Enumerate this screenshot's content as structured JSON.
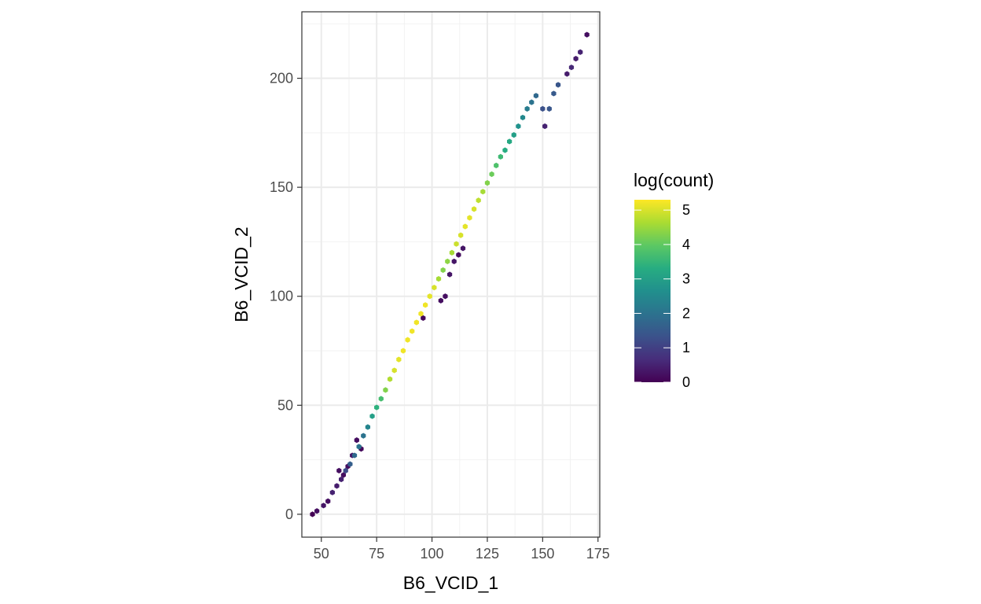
{
  "chart_data": {
    "type": "hexbin",
    "xlabel": "B6_VCID_1",
    "ylabel": "B6_VCID_2",
    "xlim": [
      41.2,
      175.8
    ],
    "ylim": [
      -10.5,
      230.5
    ],
    "x_ticks": [
      50,
      75,
      100,
      125,
      150,
      175
    ],
    "y_ticks": [
      0,
      50,
      100,
      150,
      200
    ],
    "x_tick_labels": [
      "50",
      "75",
      "100",
      "125",
      "150",
      "175"
    ],
    "y_tick_labels": [
      "0",
      "50",
      "100",
      "150",
      "200"
    ],
    "grid": true,
    "legend": {
      "title": "log(count)",
      "position": "right",
      "ticks": [
        0,
        1,
        2,
        3,
        4,
        5
      ],
      "tick_labels": [
        "0",
        "1",
        "2",
        "3",
        "4",
        "5"
      ],
      "range": [
        0,
        5.3
      ],
      "colormap": "viridis"
    },
    "colors": [
      "#440154",
      "#472d7b",
      "#3b528b",
      "#2c728e",
      "#21908d",
      "#27ad81",
      "#5cc863",
      "#aadc32",
      "#fde725"
    ],
    "points": [
      [
        46,
        0,
        0
      ],
      [
        48,
        1.5,
        0.2
      ],
      [
        51,
        4,
        0.3
      ],
      [
        53,
        6,
        0.2
      ],
      [
        55,
        10,
        0.5
      ],
      [
        57,
        13,
        0.4
      ],
      [
        59,
        16,
        0.5
      ],
      [
        61,
        20,
        1.2
      ],
      [
        63,
        23,
        1.6
      ],
      [
        65,
        27,
        1.8
      ],
      [
        67,
        31,
        2.0
      ],
      [
        69,
        36,
        2.0
      ],
      [
        71,
        40,
        2.4
      ],
      [
        73,
        45,
        3.0
      ],
      [
        75,
        49,
        3.4
      ],
      [
        77,
        53,
        3.7
      ],
      [
        79,
        57,
        4.3
      ],
      [
        81,
        62,
        4.7
      ],
      [
        83,
        66,
        5.0
      ],
      [
        85,
        71,
        5.1
      ],
      [
        87,
        75,
        5.2
      ],
      [
        89,
        80,
        5.2
      ],
      [
        91,
        84,
        5.2
      ],
      [
        93,
        88,
        5.2
      ],
      [
        95,
        92,
        5.2
      ],
      [
        97,
        96,
        5.2
      ],
      [
        99,
        100,
        5.1
      ],
      [
        101,
        104,
        5.0
      ],
      [
        103,
        108,
        4.6
      ],
      [
        105,
        112,
        4.3
      ],
      [
        107,
        116,
        4.4
      ],
      [
        109,
        120,
        4.6
      ],
      [
        111,
        124,
        4.9
      ],
      [
        113,
        128,
        5.0
      ],
      [
        115,
        132,
        5.1
      ],
      [
        117,
        136,
        5.1
      ],
      [
        119,
        140,
        5.0
      ],
      [
        121,
        144,
        4.8
      ],
      [
        123,
        148,
        4.6
      ],
      [
        125,
        152,
        4.3
      ],
      [
        127,
        156,
        4.1
      ],
      [
        129,
        160,
        3.8
      ],
      [
        131,
        164,
        3.6
      ],
      [
        133,
        167,
        3.3
      ],
      [
        135,
        171,
        3.2
      ],
      [
        137,
        174,
        3.0
      ],
      [
        139,
        178,
        2.7
      ],
      [
        141,
        182,
        2.5
      ],
      [
        143,
        186,
        2.2
      ],
      [
        145,
        189,
        2.0
      ],
      [
        147,
        192,
        1.8
      ],
      [
        150,
        186,
        1.3
      ],
      [
        151,
        178,
        0.5
      ],
      [
        153,
        186,
        1.4
      ],
      [
        155,
        193,
        1.5
      ],
      [
        157,
        197,
        1.4
      ],
      [
        161,
        202,
        0.4
      ],
      [
        163,
        205,
        0.6
      ],
      [
        165,
        209,
        0.4
      ],
      [
        167,
        212,
        0.5
      ],
      [
        170,
        220,
        0.2
      ],
      [
        58,
        20,
        0.2
      ],
      [
        60,
        18,
        0.2
      ],
      [
        62,
        22,
        0.2
      ],
      [
        64,
        27,
        0.3
      ],
      [
        66,
        34,
        0.2
      ],
      [
        68,
        30,
        0.1
      ],
      [
        96,
        90,
        0.1
      ],
      [
        104,
        98,
        0.2
      ],
      [
        106,
        100,
        0.2
      ],
      [
        108,
        110,
        0.3
      ],
      [
        110,
        116,
        0.3
      ],
      [
        112,
        119,
        0.2
      ],
      [
        114,
        122,
        0.3
      ]
    ]
  }
}
